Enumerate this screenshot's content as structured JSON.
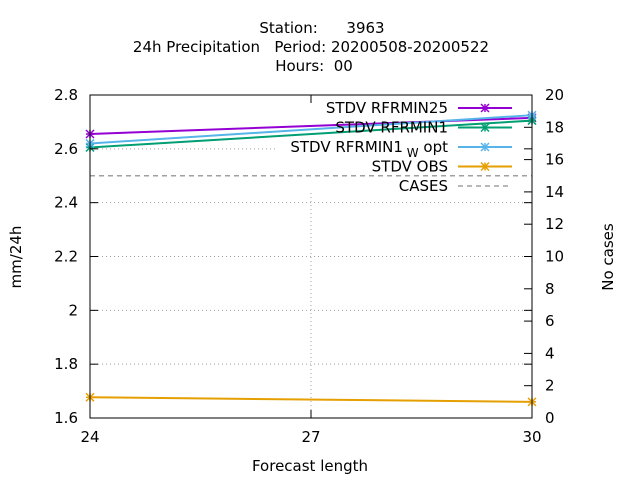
{
  "chart_data": {
    "type": "line",
    "title_lines": [
      "Station:      3963",
      "24h Precipitation   Period: 20200508-20200522",
      "Hours:  00"
    ],
    "xlabel": "Forecast length",
    "ylabel": "mm/24h",
    "y2label": "No cases",
    "xlim": [
      24,
      30
    ],
    "ylim": [
      1.6,
      2.8
    ],
    "y2lim": [
      0,
      20
    ],
    "xticks": [
      24,
      27,
      30
    ],
    "yticks": [
      1.6,
      1.8,
      2,
      2.2,
      2.4,
      2.6,
      2.8
    ],
    "y2ticks": [
      0,
      2,
      4,
      6,
      8,
      10,
      12,
      14,
      16,
      18,
      20
    ],
    "grid": true,
    "legend_position": "top-right",
    "series": [
      {
        "name": "STDV RFRMIN25",
        "color": "#9400d3",
        "axis": "y",
        "marker": "x-star",
        "x": [
          24,
          30
        ],
        "y": [
          2.655,
          2.715
        ]
      },
      {
        "name": "STDV RFRMIN1",
        "color": "#009e73",
        "axis": "y",
        "marker": "x-star",
        "x": [
          24,
          30
        ],
        "y": [
          2.605,
          2.705
        ]
      },
      {
        "name": "STDV RFRMIN1",
        "name_sub": "W",
        "name_suffix": " opt",
        "color": "#56b4e9",
        "axis": "y",
        "marker": "x-star",
        "x": [
          24,
          30
        ],
        "y": [
          2.62,
          2.725
        ]
      },
      {
        "name": "STDV OBS",
        "color": "#e69f00",
        "axis": "y",
        "marker": "x-star",
        "x": [
          24,
          30
        ],
        "y": [
          1.677,
          1.66
        ]
      },
      {
        "name": "CASES",
        "color": "#a0a0a0",
        "axis": "y2",
        "dashed": true,
        "x": [
          24,
          30
        ],
        "y": [
          15,
          15
        ]
      }
    ]
  }
}
